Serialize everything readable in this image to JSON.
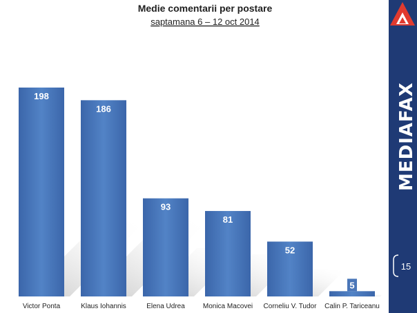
{
  "chart_data": {
    "type": "bar",
    "title": "Medie comentarii per postare",
    "subtitle": "saptamana 6 – 12 oct 2014",
    "categories": [
      "Victor Ponta",
      "Klaus Iohannis",
      "Elena Udrea",
      "Monica Macovei",
      "Corneliu V. Tudor",
      "Calin P. Tariceanu"
    ],
    "values": [
      198,
      186,
      93,
      81,
      52,
      5
    ],
    "ylim": [
      0,
      198
    ],
    "grid": false,
    "legend": "none",
    "bar_color": "#4a76b8"
  },
  "sidebar": {
    "brand": "MEDIAFAX",
    "logo_icon": "mediafax-triangle-logo",
    "page_number": "15",
    "color": "#1f3a75",
    "logo_color": "#e03a2f"
  }
}
